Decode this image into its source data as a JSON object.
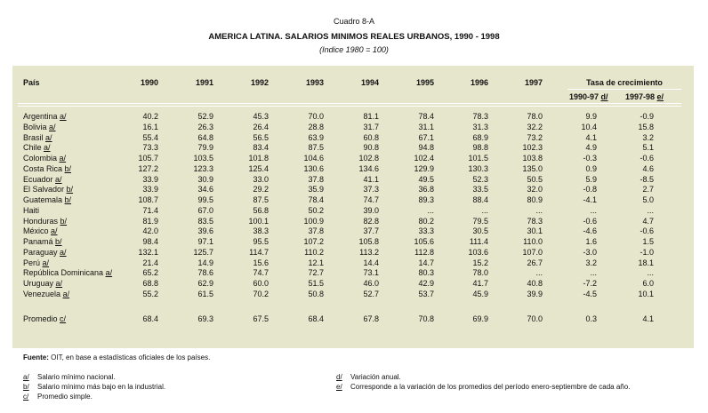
{
  "header": {
    "caption": "Cuadro 8-A",
    "title": "AMERICA LATINA.  SALARIOS MINIMOS REALES URBANOS, 1990 - 1998",
    "subtitle": "(Indice 1980 = 100)"
  },
  "table": {
    "country_header": "País",
    "years": [
      "1990",
      "1991",
      "1992",
      "1993",
      "1994",
      "1995",
      "1996",
      "1997"
    ],
    "growth_header": "Tasa de crecimiento",
    "growth_columns": [
      {
        "label": "1990-97",
        "note": "d/"
      },
      {
        "label": "1997-98",
        "note": "e/"
      }
    ],
    "rows": [
      {
        "name": "Argentina",
        "note": "a/",
        "cells": [
          "40.2",
          "52.9",
          "45.3",
          "70.0",
          "81.1",
          "78.4",
          "78.3",
          "78.0",
          "9.9",
          "-0.9"
        ]
      },
      {
        "name": "Bolivia",
        "note": "a/",
        "cells": [
          "16.1",
          "26.3",
          "26.4",
          "28.8",
          "31.7",
          "31.1",
          "31.3",
          "32.2",
          "10.4",
          "15.8"
        ]
      },
      {
        "name": "Brasil",
        "note": "a/",
        "cells": [
          "55.4",
          "64.8",
          "56.5",
          "63.9",
          "60.8",
          "67.1",
          "68.9",
          "73.2",
          "4.1",
          "3.2"
        ]
      },
      {
        "name": "Chile",
        "note": "a/",
        "cells": [
          "73.3",
          "79.9",
          "83.4",
          "87.5",
          "90.8",
          "94.8",
          "98.8",
          "102.3",
          "4.9",
          "5.1"
        ]
      },
      {
        "name": "Colombia",
        "note": "a/",
        "cells": [
          "105.7",
          "103.5",
          "101.8",
          "104.6",
          "102.8",
          "102.4",
          "101.5",
          "103.8",
          "-0.3",
          "-0.6"
        ]
      },
      {
        "name": "Costa Rica",
        "note": "b/",
        "cells": [
          "127.2",
          "123.3",
          "125.4",
          "130.6",
          "134.6",
          "129.9",
          "130.3",
          "135.0",
          "0.9",
          "4.6"
        ]
      },
      {
        "name": "Ecuador",
        "note": "a/",
        "cells": [
          "33.9",
          "30.9",
          "33.0",
          "37.8",
          "41.1",
          "49.5",
          "52.3",
          "50.5",
          "5.9",
          "-8.5"
        ]
      },
      {
        "name": "El Salvador",
        "note": "b/",
        "cells": [
          "33.9",
          "34.6",
          "29.2",
          "35.9",
          "37.3",
          "36.8",
          "33.5",
          "32.0",
          "-0.8",
          "2.7"
        ]
      },
      {
        "name": "Guatemala",
        "note": "b/",
        "cells": [
          "108.7",
          "99.5",
          "87.5",
          "78.4",
          "74.7",
          "89.3",
          "88.4",
          "80.9",
          "-4.1",
          "5.0"
        ]
      },
      {
        "name": "Haiti",
        "cells": [
          "71.4",
          "67.0",
          "56.8",
          "50.2",
          "39.0",
          "...",
          "...",
          "...",
          "...",
          "..."
        ]
      },
      {
        "name": "Honduras",
        "note": "b/",
        "cells": [
          "81.9",
          "83.5",
          "100.1",
          "100.9",
          "82.8",
          "80.2",
          "79.5",
          "78.3",
          "-0.6",
          "4.7"
        ]
      },
      {
        "name": "México",
        "note": "a/",
        "cells": [
          "42.0",
          "39.6",
          "38.3",
          "37.8",
          "37.7",
          "33.3",
          "30.5",
          "30.1",
          "-4.6",
          "-0.6"
        ]
      },
      {
        "name": "Panamá",
        "note": "b/",
        "cells": [
          "98.4",
          "97.1",
          "95.5",
          "107.2",
          "105.8",
          "105.6",
          "111.4",
          "110.0",
          "1.6",
          "1.5"
        ]
      },
      {
        "name": "Paraguay",
        "note": "a/",
        "cells": [
          "132.1",
          "125.7",
          "114.7",
          "110.2",
          "113.2",
          "112.8",
          "103.6",
          "107.0",
          "-3.0",
          "-1.0"
        ]
      },
      {
        "name": "Perú",
        "note": "a/",
        "cells": [
          "21.4",
          "14.9",
          "15.6",
          "12.1",
          "14.4",
          "14.7",
          "15.2",
          "26.7",
          "3.2",
          "18.1"
        ]
      },
      {
        "name": "República Dominicana",
        "note": "a/",
        "cells": [
          "65.2",
          "78.6",
          "74.7",
          "72.7",
          "73.1",
          "80.3",
          "78.0",
          "...",
          "...",
          "..."
        ]
      },
      {
        "name": "Uruguay",
        "note": "a/",
        "cells": [
          "68.8",
          "62.9",
          "60.0",
          "51.5",
          "46.0",
          "42.9",
          "41.7",
          "40.8",
          "-7.2",
          "6.0"
        ]
      },
      {
        "name": "Venezuela",
        "note": "a/",
        "cells": [
          "55.2",
          "61.5",
          "70.2",
          "50.8",
          "52.7",
          "53.7",
          "45.9",
          "39.9",
          "-4.5",
          "10.1"
        ]
      }
    ],
    "average": {
      "name": "Promedio",
      "note": "c/",
      "cells": [
        "68.4",
        "69.3",
        "67.5",
        "68.4",
        "67.8",
        "70.8",
        "69.9",
        "70.0",
        "0.3",
        "4.1"
      ]
    }
  },
  "footer": {
    "source_label": "Fuente:",
    "source": "OIT, en base a estadísticas oficiales de los países.",
    "notes": [
      {
        "mark": "a/",
        "text": "Salario mínimo nacional."
      },
      {
        "mark": "b/",
        "text": "Salario mínimo más bajo en la industrial."
      },
      {
        "mark": "c/",
        "text": "Promedio simple."
      },
      {
        "mark": "d/",
        "text": "Variación anual."
      },
      {
        "mark": "e/",
        "text": "Corresponde a la variación de los promedios del período enero-septiembre de cada año."
      }
    ]
  }
}
